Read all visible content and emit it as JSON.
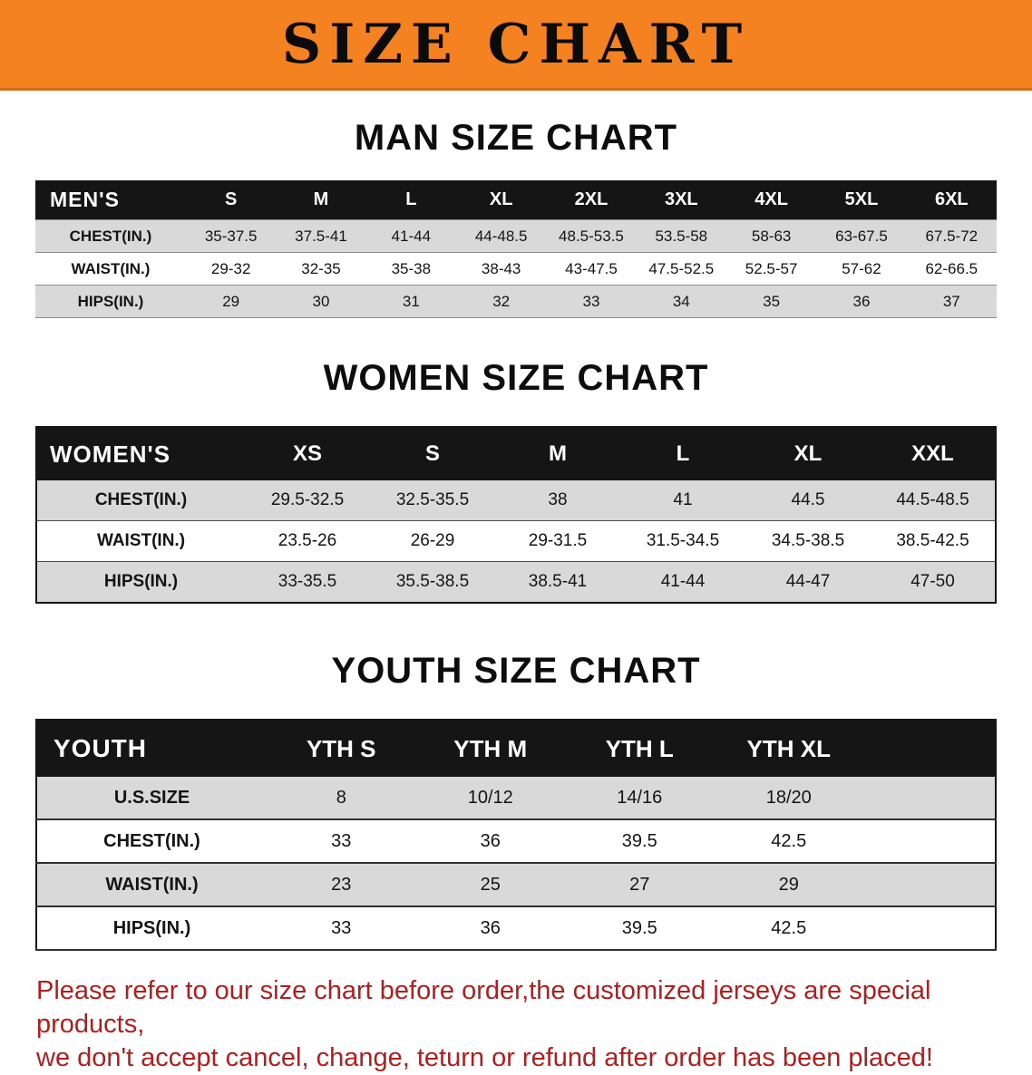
{
  "banner": {
    "title": "SIZE CHART",
    "bg_color": "#f58220"
  },
  "sections": [
    {
      "heading": "MAN SIZE CHART",
      "header_label": "MEN'S",
      "columns": [
        "S",
        "M",
        "L",
        "XL",
        "2XL",
        "3XL",
        "4XL",
        "5XL",
        "6XL"
      ],
      "rows": [
        {
          "label": "CHEST(IN.)",
          "values": [
            "35-37.5",
            "37.5-41",
            "41-44",
            "44-48.5",
            "48.5-53.5",
            "53.5-58",
            "58-63",
            "63-67.5",
            "67.5-72"
          ]
        },
        {
          "label": "WAIST(IN.)",
          "values": [
            "29-32",
            "32-35",
            "35-38",
            "38-43",
            "43-47.5",
            "47.5-52.5",
            "52.5-57",
            "57-62",
            "62-66.5"
          ]
        },
        {
          "label": "HIPS(IN.)",
          "values": [
            "29",
            "30",
            "31",
            "32",
            "33",
            "34",
            "35",
            "36",
            "37"
          ]
        }
      ]
    },
    {
      "heading": "WOMEN SIZE CHART",
      "header_label": "WOMEN'S",
      "columns": [
        "XS",
        "S",
        "M",
        "L",
        "XL",
        "XXL"
      ],
      "rows": [
        {
          "label": "CHEST(IN.)",
          "values": [
            "29.5-32.5",
            "32.5-35.5",
            "38",
            "41",
            "44.5",
            "44.5-48.5"
          ]
        },
        {
          "label": "WAIST(IN.)",
          "values": [
            "23.5-26",
            "26-29",
            "29-31.5",
            "31.5-34.5",
            "34.5-38.5",
            "38.5-42.5"
          ]
        },
        {
          "label": "HIPS(IN.)",
          "values": [
            "33-35.5",
            "35.5-38.5",
            "38.5-41",
            "41-44",
            "44-47",
            "47-50"
          ]
        }
      ]
    },
    {
      "heading": "YOUTH SIZE CHART",
      "header_label": "YOUTH",
      "columns": [
        "YTH S",
        "YTH M",
        "YTH L",
        "YTH XL"
      ],
      "rows": [
        {
          "label": "U.S.SIZE",
          "values": [
            "8",
            "10/12",
            "14/16",
            "18/20"
          ]
        },
        {
          "label": "CHEST(IN.)",
          "values": [
            "33",
            "36",
            "39.5",
            "42.5"
          ]
        },
        {
          "label": "WAIST(IN.)",
          "values": [
            "23",
            "25",
            "27",
            "29"
          ]
        },
        {
          "label": "HIPS(IN.)",
          "values": [
            "33",
            "36",
            "39.5",
            "42.5"
          ]
        }
      ]
    }
  ],
  "disclaimer": {
    "line1": "Please refer to our size chart before order,the customized jerseys are special products,",
    "line2": "we don't accept cancel, change, teturn or refund after order has been placed!",
    "color": "#b21e1e"
  }
}
